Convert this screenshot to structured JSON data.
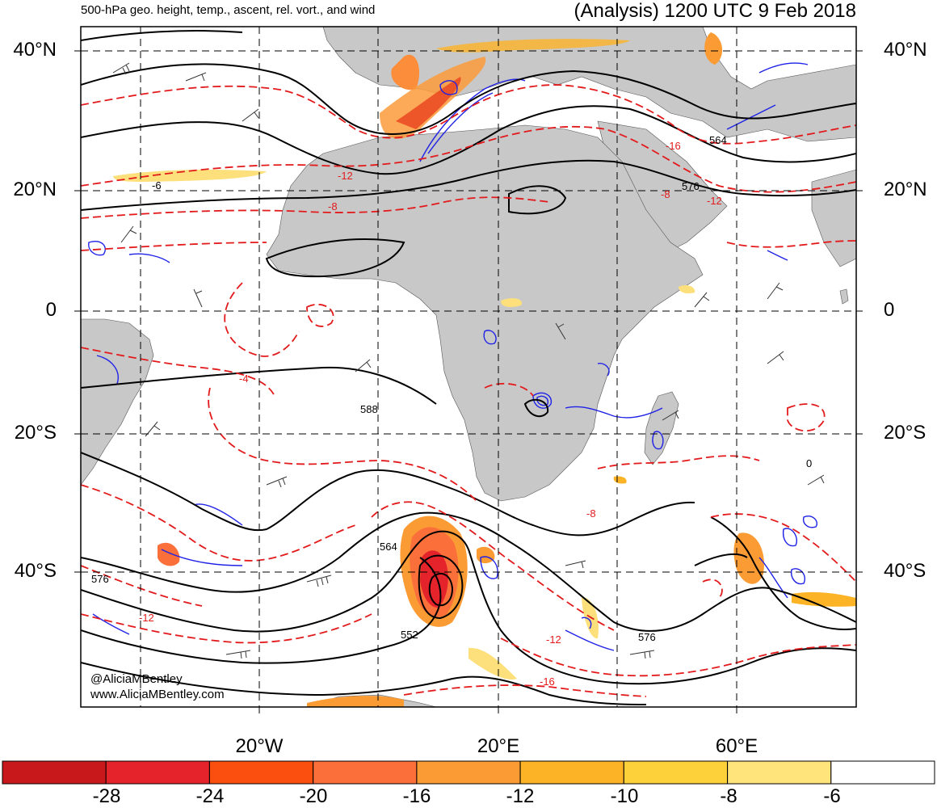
{
  "header": {
    "left_title": "500-hPa geo. height, temp., ascent, rel. vort., and wind",
    "right_title": "(Analysis) 1200 UTC 9 Feb 2018"
  },
  "axes": {
    "lat_labels": [
      "40°N",
      "20°N",
      "0",
      "20°S",
      "40°S"
    ],
    "lon_labels": [
      "20°W",
      "20°E",
      "60°E"
    ]
  },
  "contours": {
    "height_labels": [
      "564",
      "576",
      "588",
      "576",
      "564",
      "552",
      "576"
    ],
    "temp_labels": [
      "-6",
      "-8",
      "-12",
      "-16",
      "-8",
      "-12",
      "-4",
      "-8",
      "-12",
      "-12",
      "-16",
      "0"
    ]
  },
  "credits": {
    "line1": "@AliciaMBentley",
    "line2": "www.AliciaMBentley.com"
  },
  "colorbar": {
    "labels": [
      "-28",
      "-24",
      "-20",
      "-16",
      "-12",
      "-10",
      "-8",
      "-6"
    ],
    "colors": [
      "#c8181b",
      "#e4242a",
      "#fb4f10",
      "#fb6f3b",
      "#fb9b34",
      "#fcb325",
      "#fdd13a",
      "#fee47b",
      "#ffffff"
    ]
  },
  "colors": {
    "land": "#c8c8c8",
    "height_contour": "#000000",
    "temp_contour": "#e31a1c",
    "vorticity": "#1f22e6",
    "grid": "#000000"
  }
}
